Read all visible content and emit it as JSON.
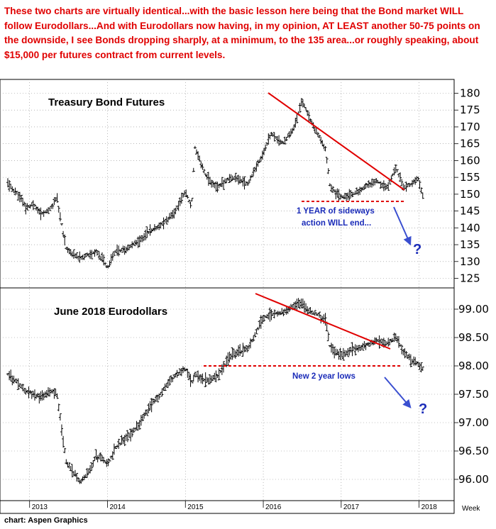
{
  "header_note": "These two charts are virtually identical...with the basic lesson here being that the Bond market WILL follow Eurodollars...And with Eurodollars now having, in my opinion, AT LEAST another 50-75 points on the downside, I see Bonds dropping sharply, at a minimum, to the 135 area...or roughly speaking, about $15,000 per futures contract from current levels.",
  "source_credit": "chart: Aspen Graphics",
  "x_period_label": "Week",
  "colors": {
    "bars": "#000000",
    "trendline": "#e00000",
    "arrow": "#3a4fd0",
    "annotation": "#1a2bb8",
    "header": "#e00000"
  },
  "chart_data": [
    {
      "type": "ohlc-bar",
      "title": "Treasury Bond Futures",
      "x_ticks": [
        "2013",
        "2014",
        "2015",
        "2016",
        "2017",
        "2018"
      ],
      "y_ticks": [
        125,
        130,
        135,
        140,
        145,
        150,
        155,
        160,
        165,
        170,
        175,
        180
      ],
      "ylim": [
        123,
        182
      ],
      "series": [
        {
          "x": 2012.72,
          "y": 153
        },
        {
          "x": 2012.85,
          "y": 150
        },
        {
          "x": 2012.95,
          "y": 146
        },
        {
          "x": 2013.05,
          "y": 147
        },
        {
          "x": 2013.15,
          "y": 144
        },
        {
          "x": 2013.28,
          "y": 146
        },
        {
          "x": 2013.35,
          "y": 149
        },
        {
          "x": 2013.42,
          "y": 140
        },
        {
          "x": 2013.47,
          "y": 134
        },
        {
          "x": 2013.55,
          "y": 132
        },
        {
          "x": 2013.65,
          "y": 131
        },
        {
          "x": 2013.75,
          "y": 132
        },
        {
          "x": 2013.85,
          "y": 133
        },
        {
          "x": 2013.95,
          "y": 130
        },
        {
          "x": 2014.0,
          "y": 128
        },
        {
          "x": 2014.1,
          "y": 133
        },
        {
          "x": 2014.25,
          "y": 134
        },
        {
          "x": 2014.4,
          "y": 136
        },
        {
          "x": 2014.55,
          "y": 139
        },
        {
          "x": 2014.7,
          "y": 141
        },
        {
          "x": 2014.85,
          "y": 144
        },
        {
          "x": 2015.0,
          "y": 151
        },
        {
          "x": 2015.08,
          "y": 146
        },
        {
          "x": 2015.12,
          "y": 164
        },
        {
          "x": 2015.25,
          "y": 156
        },
        {
          "x": 2015.4,
          "y": 152
        },
        {
          "x": 2015.6,
          "y": 155
        },
        {
          "x": 2015.8,
          "y": 153
        },
        {
          "x": 2016.0,
          "y": 162
        },
        {
          "x": 2016.1,
          "y": 168
        },
        {
          "x": 2016.25,
          "y": 165
        },
        {
          "x": 2016.4,
          "y": 170
        },
        {
          "x": 2016.5,
          "y": 178
        },
        {
          "x": 2016.6,
          "y": 172
        },
        {
          "x": 2016.7,
          "y": 168
        },
        {
          "x": 2016.8,
          "y": 163
        },
        {
          "x": 2016.86,
          "y": 152
        },
        {
          "x": 2017.0,
          "y": 149
        },
        {
          "x": 2017.15,
          "y": 150
        },
        {
          "x": 2017.3,
          "y": 152
        },
        {
          "x": 2017.45,
          "y": 154
        },
        {
          "x": 2017.6,
          "y": 152
        },
        {
          "x": 2017.7,
          "y": 158
        },
        {
          "x": 2017.8,
          "y": 152
        },
        {
          "x": 2017.9,
          "y": 153
        },
        {
          "x": 2017.98,
          "y": 155
        },
        {
          "x": 2018.05,
          "y": 149
        }
      ],
      "annotations": [
        "1 YEAR of sideways",
        "action WILL end...",
        "?"
      ]
    },
    {
      "type": "ohlc-bar",
      "title": "June 2018 Eurodollars",
      "x_ticks": [
        "2013",
        "2014",
        "2015",
        "2016",
        "2017",
        "2018"
      ],
      "y_ticks": [
        "96.00",
        "96.50",
        "97.00",
        "97.50",
        "98.00",
        "98.50",
        "99.00"
      ],
      "ylim": [
        95.7,
        99.3
      ],
      "series": [
        {
          "x": 2012.72,
          "y": 97.85
        },
        {
          "x": 2012.85,
          "y": 97.7
        },
        {
          "x": 2012.95,
          "y": 97.55
        },
        {
          "x": 2013.05,
          "y": 97.5
        },
        {
          "x": 2013.15,
          "y": 97.45
        },
        {
          "x": 2013.28,
          "y": 97.55
        },
        {
          "x": 2013.35,
          "y": 97.5
        },
        {
          "x": 2013.42,
          "y": 96.8
        },
        {
          "x": 2013.47,
          "y": 96.3
        },
        {
          "x": 2013.55,
          "y": 96.15
        },
        {
          "x": 2013.65,
          "y": 95.95
        },
        {
          "x": 2013.75,
          "y": 96.1
        },
        {
          "x": 2013.85,
          "y": 96.4
        },
        {
          "x": 2013.95,
          "y": 96.35
        },
        {
          "x": 2014.0,
          "y": 96.25
        },
        {
          "x": 2014.1,
          "y": 96.55
        },
        {
          "x": 2014.25,
          "y": 96.75
        },
        {
          "x": 2014.4,
          "y": 96.95
        },
        {
          "x": 2014.55,
          "y": 97.3
        },
        {
          "x": 2014.7,
          "y": 97.55
        },
        {
          "x": 2014.85,
          "y": 97.8
        },
        {
          "x": 2015.0,
          "y": 97.95
        },
        {
          "x": 2015.08,
          "y": 97.7
        },
        {
          "x": 2015.12,
          "y": 97.85
        },
        {
          "x": 2015.25,
          "y": 97.75
        },
        {
          "x": 2015.4,
          "y": 97.8
        },
        {
          "x": 2015.6,
          "y": 98.2
        },
        {
          "x": 2015.8,
          "y": 98.3
        },
        {
          "x": 2016.0,
          "y": 98.85
        },
        {
          "x": 2016.1,
          "y": 98.9
        },
        {
          "x": 2016.25,
          "y": 98.95
        },
        {
          "x": 2016.4,
          "y": 99.05
        },
        {
          "x": 2016.5,
          "y": 99.1
        },
        {
          "x": 2016.6,
          "y": 98.95
        },
        {
          "x": 2016.7,
          "y": 98.9
        },
        {
          "x": 2016.8,
          "y": 98.8
        },
        {
          "x": 2016.86,
          "y": 98.3
        },
        {
          "x": 2017.0,
          "y": 98.2
        },
        {
          "x": 2017.15,
          "y": 98.3
        },
        {
          "x": 2017.3,
          "y": 98.35
        },
        {
          "x": 2017.45,
          "y": 98.45
        },
        {
          "x": 2017.6,
          "y": 98.4
        },
        {
          "x": 2017.7,
          "y": 98.5
        },
        {
          "x": 2017.8,
          "y": 98.25
        },
        {
          "x": 2017.9,
          "y": 98.1
        },
        {
          "x": 2017.98,
          "y": 98.05
        },
        {
          "x": 2018.05,
          "y": 97.95
        }
      ],
      "annotations": [
        "New 2 year lows",
        "?"
      ]
    }
  ]
}
